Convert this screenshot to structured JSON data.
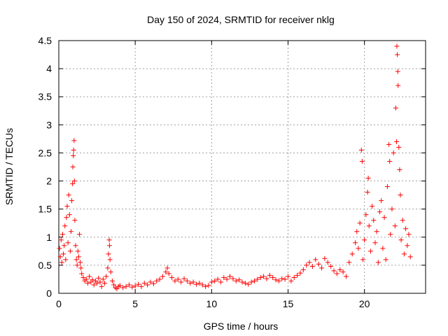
{
  "chart_data": {
    "type": "scatter",
    "title": "Day 150 of 2024, SRMTID for receiver nklg",
    "xlabel": "GPS time / hours",
    "ylabel": "SRMTID / TECUs",
    "xlim": [
      0,
      24
    ],
    "ylim": [
      0,
      4.5
    ],
    "xticks": [
      0,
      5,
      10,
      15,
      20
    ],
    "xtick_labels": [
      "0",
      "5",
      "10",
      "15",
      "20"
    ],
    "yticks": [
      0,
      0.5,
      1,
      1.5,
      2,
      2.5,
      3,
      3.5,
      4,
      4.5
    ],
    "ytick_labels": [
      "0",
      "0.5",
      "1",
      "1.5",
      "2",
      "2.5",
      "3",
      "3.5",
      "4",
      "4.5"
    ],
    "grid": true,
    "marker": "+",
    "color": "#ff0000",
    "series": [
      {
        "name": "SRMTID",
        "points": [
          [
            0.05,
            0.8
          ],
          [
            0.1,
            0.65
          ],
          [
            0.15,
            0.95
          ],
          [
            0.2,
            0.55
          ],
          [
            0.25,
            1.05
          ],
          [
            0.3,
            0.7
          ],
          [
            0.35,
            0.85
          ],
          [
            0.4,
            1.2
          ],
          [
            0.45,
            0.6
          ],
          [
            0.5,
            1.35
          ],
          [
            0.55,
            1.55
          ],
          [
            0.6,
            0.9
          ],
          [
            0.65,
            1.75
          ],
          [
            0.7,
            1.4
          ],
          [
            0.75,
            0.75
          ],
          [
            0.8,
            1.1
          ],
          [
            0.85,
            1.65
          ],
          [
            0.9,
            1.95
          ],
          [
            0.92,
            2.25
          ],
          [
            0.95,
            2.45
          ],
          [
            0.97,
            2.55
          ],
          [
            1.0,
            2.72
          ],
          [
            1.02,
            2.0
          ],
          [
            1.05,
            1.3
          ],
          [
            1.1,
            0.85
          ],
          [
            1.15,
            0.6
          ],
          [
            1.2,
            0.5
          ],
          [
            1.25,
            0.75
          ],
          [
            1.3,
            0.65
          ],
          [
            1.35,
            1.05
          ],
          [
            1.4,
            0.55
          ],
          [
            1.45,
            0.45
          ],
          [
            1.5,
            0.35
          ],
          [
            1.6,
            0.28
          ],
          [
            1.7,
            0.22
          ],
          [
            1.8,
            0.25
          ],
          [
            1.9,
            0.18
          ],
          [
            2.0,
            0.3
          ],
          [
            2.1,
            0.2
          ],
          [
            2.2,
            0.24
          ],
          [
            2.3,
            0.15
          ],
          [
            2.4,
            0.22
          ],
          [
            2.5,
            0.18
          ],
          [
            2.6,
            0.27
          ],
          [
            2.7,
            0.2
          ],
          [
            2.8,
            0.12
          ],
          [
            2.9,
            0.25
          ],
          [
            3.0,
            0.18
          ],
          [
            3.1,
            0.3
          ],
          [
            3.2,
            0.45
          ],
          [
            3.25,
            0.7
          ],
          [
            3.3,
            0.95
          ],
          [
            3.32,
            0.85
          ],
          [
            3.35,
            0.6
          ],
          [
            3.4,
            0.38
          ],
          [
            3.5,
            0.22
          ],
          [
            3.6,
            0.15
          ],
          [
            3.7,
            0.1
          ],
          [
            3.8,
            0.08
          ],
          [
            3.9,
            0.12
          ],
          [
            4.0,
            0.14
          ],
          [
            4.2,
            0.1
          ],
          [
            4.4,
            0.12
          ],
          [
            4.6,
            0.15
          ],
          [
            4.8,
            0.11
          ],
          [
            5.0,
            0.13
          ],
          [
            5.2,
            0.16
          ],
          [
            5.4,
            0.12
          ],
          [
            5.6,
            0.18
          ],
          [
            5.8,
            0.15
          ],
          [
            6.0,
            0.2
          ],
          [
            6.2,
            0.17
          ],
          [
            6.4,
            0.22
          ],
          [
            6.6,
            0.25
          ],
          [
            6.8,
            0.3
          ],
          [
            7.0,
            0.38
          ],
          [
            7.1,
            0.45
          ],
          [
            7.2,
            0.35
          ],
          [
            7.4,
            0.28
          ],
          [
            7.6,
            0.22
          ],
          [
            7.8,
            0.25
          ],
          [
            8.0,
            0.2
          ],
          [
            8.2,
            0.26
          ],
          [
            8.4,
            0.22
          ],
          [
            8.6,
            0.18
          ],
          [
            8.8,
            0.2
          ],
          [
            9.0,
            0.16
          ],
          [
            9.2,
            0.18
          ],
          [
            9.4,
            0.15
          ],
          [
            9.6,
            0.12
          ],
          [
            9.8,
            0.14
          ],
          [
            10.0,
            0.2
          ],
          [
            10.2,
            0.22
          ],
          [
            10.4,
            0.25
          ],
          [
            10.6,
            0.2
          ],
          [
            10.8,
            0.28
          ],
          [
            11.0,
            0.25
          ],
          [
            11.2,
            0.3
          ],
          [
            11.4,
            0.26
          ],
          [
            11.6,
            0.22
          ],
          [
            11.8,
            0.24
          ],
          [
            12.0,
            0.2
          ],
          [
            12.2,
            0.18
          ],
          [
            12.4,
            0.16
          ],
          [
            12.6,
            0.2
          ],
          [
            12.8,
            0.22
          ],
          [
            13.0,
            0.25
          ],
          [
            13.2,
            0.28
          ],
          [
            13.4,
            0.3
          ],
          [
            13.6,
            0.26
          ],
          [
            13.8,
            0.32
          ],
          [
            14.0,
            0.28
          ],
          [
            14.2,
            0.24
          ],
          [
            14.4,
            0.22
          ],
          [
            14.6,
            0.26
          ],
          [
            14.8,
            0.25
          ],
          [
            15.0,
            0.3
          ],
          [
            15.2,
            0.22
          ],
          [
            15.4,
            0.28
          ],
          [
            15.6,
            0.32
          ],
          [
            15.8,
            0.36
          ],
          [
            16.0,
            0.42
          ],
          [
            16.2,
            0.5
          ],
          [
            16.4,
            0.55
          ],
          [
            16.6,
            0.48
          ],
          [
            16.8,
            0.6
          ],
          [
            17.0,
            0.52
          ],
          [
            17.2,
            0.45
          ],
          [
            17.4,
            0.62
          ],
          [
            17.6,
            0.55
          ],
          [
            17.8,
            0.48
          ],
          [
            18.0,
            0.4
          ],
          [
            18.2,
            0.35
          ],
          [
            18.4,
            0.42
          ],
          [
            18.6,
            0.38
          ],
          [
            18.8,
            0.3
          ],
          [
            19.0,
            0.55
          ],
          [
            19.2,
            0.7
          ],
          [
            19.4,
            0.9
          ],
          [
            19.5,
            1.1
          ],
          [
            19.6,
            0.8
          ],
          [
            19.7,
            1.25
          ],
          [
            19.8,
            2.55
          ],
          [
            19.85,
            2.35
          ],
          [
            19.9,
            0.6
          ],
          [
            20.0,
            0.95
          ],
          [
            20.1,
            1.4
          ],
          [
            20.2,
            1.8
          ],
          [
            20.25,
            2.05
          ],
          [
            20.3,
            1.2
          ],
          [
            20.4,
            0.75
          ],
          [
            20.5,
            1.55
          ],
          [
            20.6,
            1.3
          ],
          [
            20.7,
            0.9
          ],
          [
            20.8,
            1.1
          ],
          [
            20.9,
            0.55
          ],
          [
            21.0,
            1.45
          ],
          [
            21.1,
            1.65
          ],
          [
            21.2,
            0.8
          ],
          [
            21.3,
            1.35
          ],
          [
            21.4,
            0.6
          ],
          [
            21.5,
            1.9
          ],
          [
            21.6,
            2.65
          ],
          [
            21.65,
            2.35
          ],
          [
            21.7,
            1.05
          ],
          [
            21.8,
            1.5
          ],
          [
            21.9,
            2.5
          ],
          [
            22.0,
            1.2
          ],
          [
            22.05,
            3.3
          ],
          [
            22.1,
            2.7
          ],
          [
            22.12,
            4.4
          ],
          [
            22.15,
            4.25
          ],
          [
            22.18,
            3.95
          ],
          [
            22.2,
            3.7
          ],
          [
            22.25,
            2.6
          ],
          [
            22.3,
            2.2
          ],
          [
            22.35,
            1.75
          ],
          [
            22.4,
            0.95
          ],
          [
            22.5,
            1.3
          ],
          [
            22.6,
            0.7
          ],
          [
            22.7,
            1.15
          ],
          [
            22.8,
            0.85
          ],
          [
            22.9,
            1.05
          ],
          [
            23.0,
            0.65
          ]
        ]
      }
    ]
  }
}
